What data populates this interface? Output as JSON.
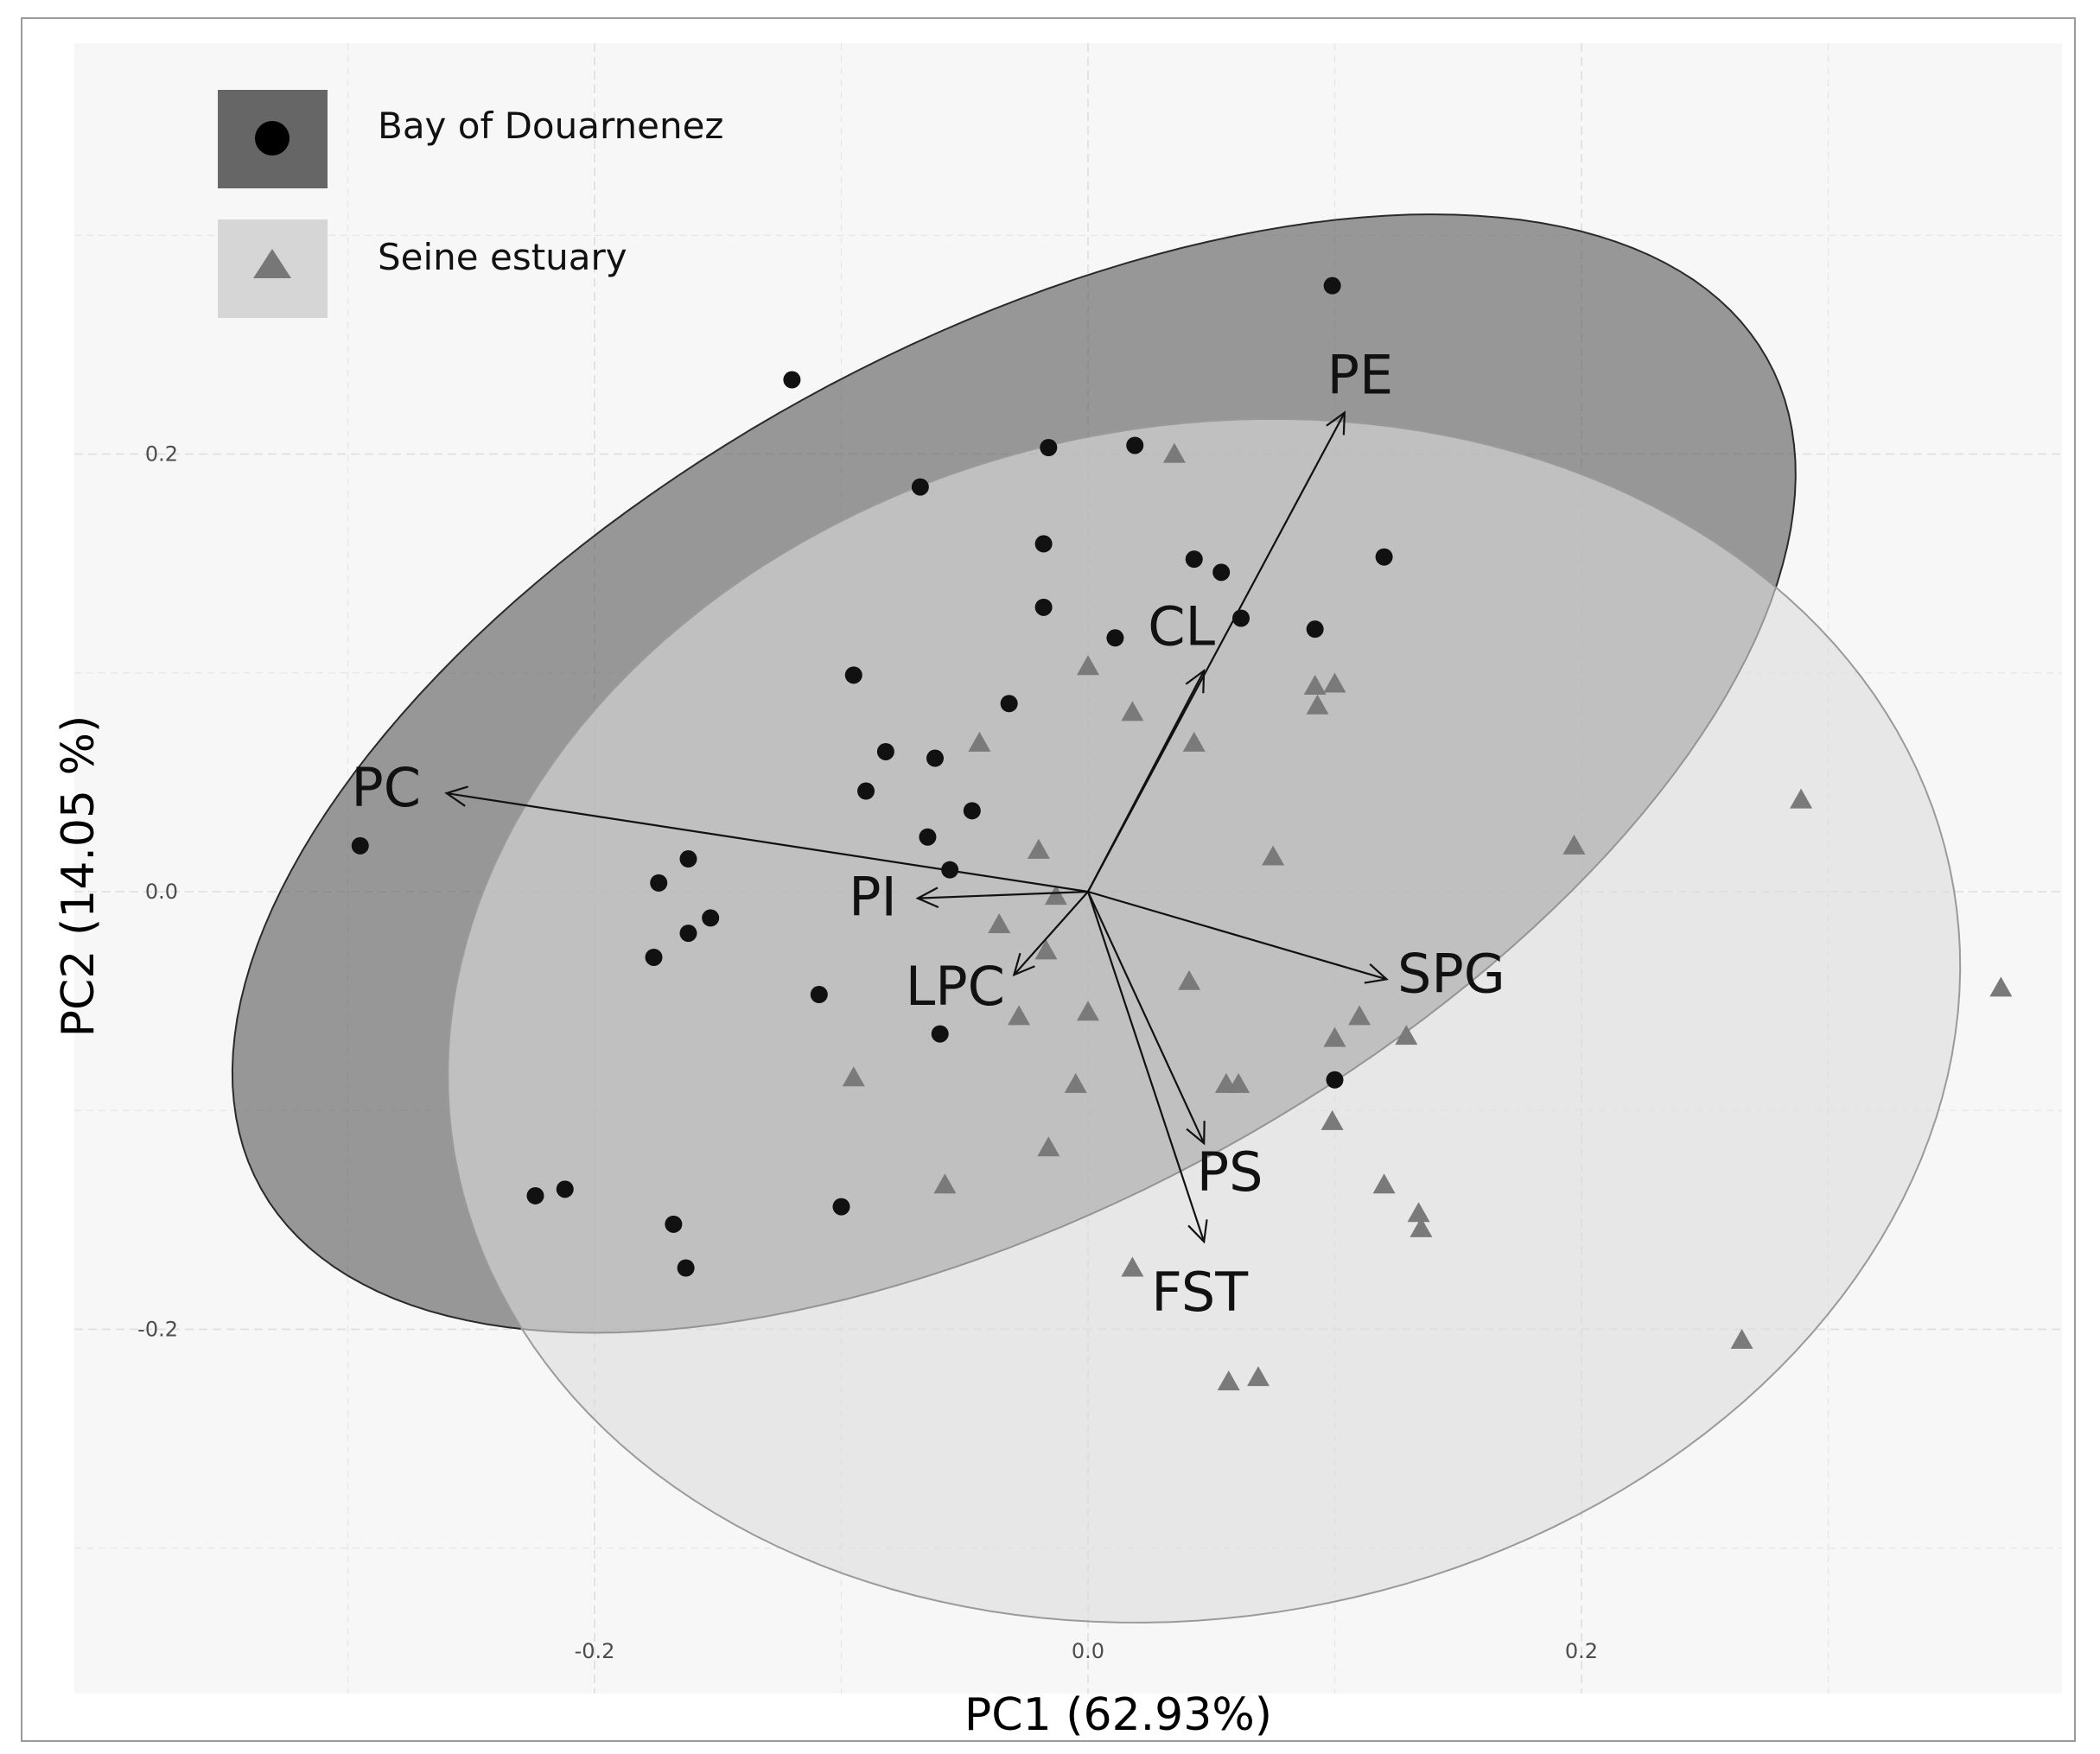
{
  "chart_data": {
    "type": "scatter",
    "title": "",
    "xlabel": "PC1 (62.93%)",
    "ylabel": "PC2 (14.05 %)",
    "xlim": [
      -0.41,
      0.4
    ],
    "ylim": [
      -0.35,
      0.39
    ],
    "x_ticks": [
      -0.2,
      0.0,
      0.2
    ],
    "x_tick_labels": [
      "-0.2",
      "0.0",
      "0.2"
    ],
    "y_ticks": [
      -0.2,
      0.0,
      0.2
    ],
    "y_tick_labels": [
      "-0.2",
      "0.0",
      "0.2"
    ],
    "grid": true,
    "legend_position": "top-left",
    "series": [
      {
        "name": "Bay of Douarnenez",
        "marker": "circle",
        "color": "#111111",
        "ellipse": {
          "center": [
            -0.03,
            0.054
          ],
          "semi_axes": [
            0.36,
            0.19
          ],
          "angle_deg": 34,
          "fill": "#5c5c5c",
          "fill_opacity": 0.62
        },
        "points": [
          [
            0.099,
            0.277
          ],
          [
            -0.12,
            0.234
          ],
          [
            -0.016,
            0.203
          ],
          [
            0.019,
            0.204
          ],
          [
            -0.068,
            0.185
          ],
          [
            -0.018,
            0.159
          ],
          [
            0.043,
            0.152
          ],
          [
            0.054,
            0.146
          ],
          [
            0.12,
            0.153
          ],
          [
            -0.018,
            0.13
          ],
          [
            0.062,
            0.125
          ],
          [
            0.011,
            0.116
          ],
          [
            0.092,
            0.12
          ],
          [
            -0.095,
            0.099
          ],
          [
            -0.032,
            0.086
          ],
          [
            -0.082,
            0.064
          ],
          [
            -0.062,
            0.061
          ],
          [
            -0.09,
            0.046
          ],
          [
            -0.047,
            0.037
          ],
          [
            -0.065,
            0.025
          ],
          [
            -0.295,
            0.021
          ],
          [
            -0.162,
            0.015
          ],
          [
            -0.056,
            0.01
          ],
          [
            -0.174,
            0.004
          ],
          [
            -0.153,
            -0.012
          ],
          [
            -0.162,
            -0.019
          ],
          [
            -0.176,
            -0.03
          ],
          [
            -0.109,
            -0.047
          ],
          [
            -0.06,
            -0.065
          ],
          [
            0.1,
            -0.086
          ],
          [
            -0.1,
            -0.144
          ],
          [
            -0.224,
            -0.139
          ],
          [
            -0.212,
            -0.136
          ],
          [
            -0.168,
            -0.152
          ],
          [
            -0.163,
            -0.172
          ]
        ]
      },
      {
        "name": "Seine estuary",
        "marker": "triangle",
        "color": "#7a7a7a",
        "ellipse": {
          "center": [
            0.047,
            -0.059
          ],
          "semi_axes": [
            0.311,
            0.27
          ],
          "angle_deg": 20,
          "fill": "#dcdcdc",
          "fill_opacity": 0.6
        },
        "points": [
          [
            0.035,
            0.2
          ],
          [
            0.0,
            0.103
          ],
          [
            0.092,
            0.094
          ],
          [
            0.1,
            0.095
          ],
          [
            0.093,
            0.085
          ],
          [
            0.018,
            0.082
          ],
          [
            -0.044,
            0.068
          ],
          [
            0.043,
            0.068
          ],
          [
            0.289,
            0.042
          ],
          [
            0.197,
            0.021
          ],
          [
            0.075,
            0.016
          ],
          [
            -0.02,
            0.019
          ],
          [
            -0.013,
            -0.002
          ],
          [
            -0.036,
            -0.015
          ],
          [
            -0.017,
            -0.027
          ],
          [
            0.041,
            -0.041
          ],
          [
            0.37,
            -0.044
          ],
          [
            0.0,
            -0.055
          ],
          [
            -0.028,
            -0.057
          ],
          [
            0.11,
            -0.057
          ],
          [
            0.1,
            -0.067
          ],
          [
            0.129,
            -0.066
          ],
          [
            -0.095,
            -0.085
          ],
          [
            -0.005,
            -0.088
          ],
          [
            0.056,
            -0.088
          ],
          [
            0.061,
            -0.088
          ],
          [
            0.099,
            -0.105
          ],
          [
            -0.016,
            -0.117
          ],
          [
            -0.058,
            -0.134
          ],
          [
            0.12,
            -0.134
          ],
          [
            0.134,
            -0.147
          ],
          [
            0.135,
            -0.154
          ],
          [
            0.018,
            -0.172
          ],
          [
            0.265,
            -0.205
          ],
          [
            0.057,
            -0.224
          ],
          [
            0.069,
            -0.222
          ]
        ]
      }
    ],
    "vectors": [
      {
        "label": "PE",
        "end": [
          0.104,
          0.219
        ]
      },
      {
        "label": "CL",
        "end": [
          0.047,
          0.101
        ]
      },
      {
        "label": "PC",
        "end": [
          -0.26,
          0.045
        ]
      },
      {
        "label": "PI",
        "end": [
          -0.069,
          -0.003
        ]
      },
      {
        "label": "LPC",
        "end": [
          -0.03,
          -0.038
        ]
      },
      {
        "label": "SPG",
        "end": [
          0.121,
          -0.04
        ]
      },
      {
        "label": "PS",
        "end": [
          0.047,
          -0.115
        ]
      },
      {
        "label": "FST",
        "end": [
          0.047,
          -0.16
        ]
      }
    ]
  }
}
